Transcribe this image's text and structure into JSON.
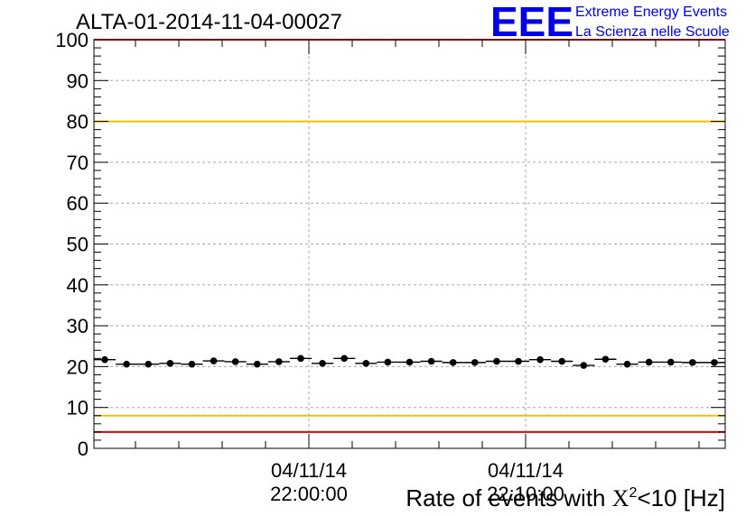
{
  "chart_data": {
    "type": "scatter",
    "title": "ALTA-01-2014-11-04-00027",
    "xlabel_parts": [
      "Rate of events with ",
      "X",
      "2",
      "<10 [Hz]"
    ],
    "ylabel": "",
    "ylim": [
      0,
      100
    ],
    "yticks": [
      "0",
      "10",
      "20",
      "30",
      "40",
      "50",
      "60",
      "70",
      "80",
      "90",
      "100"
    ],
    "xticks": [
      {
        "date": "04/11/14",
        "time": "22:00:00"
      },
      {
        "date": "04/11/14",
        "time": "22:10:00"
      }
    ],
    "grid": true,
    "reference_lines": [
      {
        "y": 100,
        "color": "#e60000"
      },
      {
        "y": 80,
        "color": "#f2c200"
      },
      {
        "y": 8,
        "color": "#f2c200"
      },
      {
        "y": 4,
        "color": "#e60000"
      }
    ],
    "series": [
      {
        "color": "#000000",
        "values": [
          21.7,
          20.6,
          20.6,
          20.8,
          20.6,
          21.4,
          21.2,
          20.6,
          21.2,
          22.0,
          20.8,
          22.0,
          20.8,
          21.1,
          21.1,
          21.3,
          21.0,
          21.0,
          21.3,
          21.3,
          21.7,
          21.3,
          20.3,
          21.8,
          20.6,
          21.1,
          21.1,
          21.0,
          21.0
        ]
      }
    ]
  },
  "logo": {
    "mark": "EEE",
    "line1": "Extreme Energy Events",
    "line2": "La Scienza nelle Scuole",
    "color": "#0000e6"
  }
}
